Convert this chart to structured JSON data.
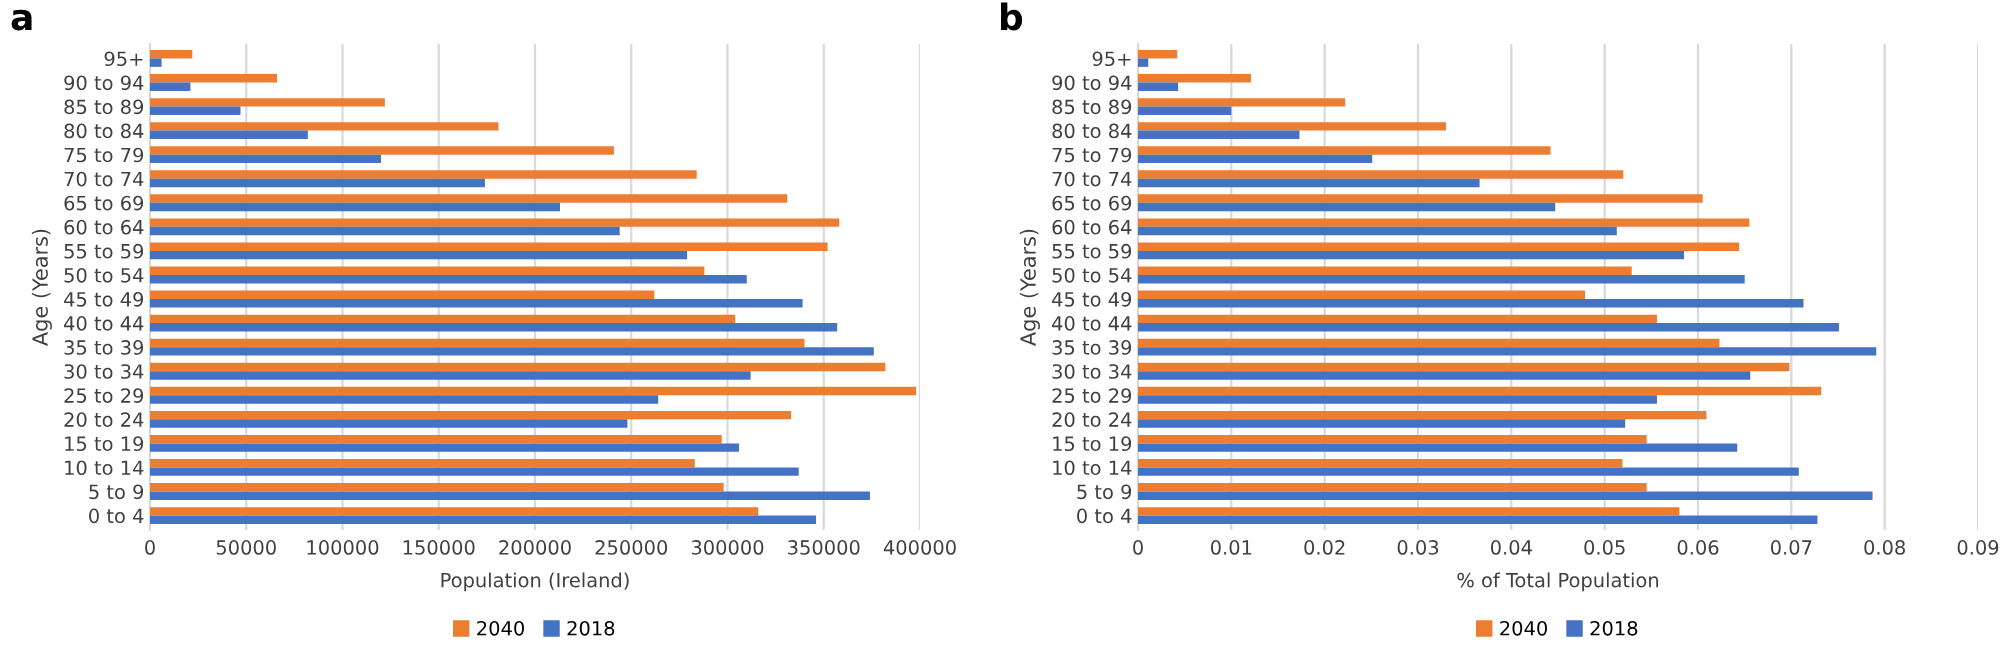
{
  "chart_data": [
    {
      "type": "bar",
      "orientation": "horizontal",
      "title": "a",
      "xlabel": "Population (Ireland)",
      "ylabel": "Age (Years)",
      "categories": [
        "95+",
        "90 to 94",
        "85 to 89",
        "80 to 84",
        "75 to 79",
        "70 to 74",
        "65 to 69",
        "60 to 64",
        "55 to 59",
        "50 to 54",
        "45 to 49",
        "40 to 44",
        "35 to 39",
        "30 to 34",
        "25 to 29",
        "20 to 24",
        "15 to 19",
        "10 to 14",
        "5 to 9",
        "0 to 4"
      ],
      "series": [
        {
          "name": "2040",
          "color": "#ed7d31",
          "values": [
            22000,
            66000,
            122000,
            181000,
            241000,
            284000,
            331000,
            358000,
            352000,
            288000,
            262000,
            304000,
            340000,
            382000,
            398000,
            333000,
            297000,
            283000,
            298000,
            316000
          ]
        },
        {
          "name": "2018",
          "color": "#4472c4",
          "values": [
            6000,
            21000,
            47000,
            82000,
            120000,
            174000,
            213000,
            244000,
            279000,
            310000,
            339000,
            357000,
            376000,
            312000,
            264000,
            248000,
            306000,
            337000,
            374000,
            346000
          ]
        }
      ],
      "xlim": [
        0,
        400000
      ],
      "xticks": [
        0,
        50000,
        100000,
        150000,
        200000,
        250000,
        300000,
        350000,
        400000
      ],
      "grid": "x",
      "legend": "bottom"
    },
    {
      "type": "bar",
      "orientation": "horizontal",
      "title": "b",
      "xlabel": "% of Total Population",
      "ylabel": "Age (Years)",
      "categories": [
        "95+",
        "90 to 94",
        "85 to 89",
        "80 to 84",
        "75 to 79",
        "70 to 74",
        "65 to 69",
        "60 to 64",
        "55 to 59",
        "50 to 54",
        "45 to 49",
        "40 to 44",
        "35 to 39",
        "30 to 34",
        "25 to 29",
        "20 to 24",
        "15 to 19",
        "10 to 14",
        "5 to 9",
        "0 to 4"
      ],
      "series": [
        {
          "name": "2040",
          "color": "#ed7d31",
          "values": [
            0.0042,
            0.0121,
            0.0222,
            0.033,
            0.0442,
            0.052,
            0.0605,
            0.0655,
            0.0644,
            0.0529,
            0.0479,
            0.0556,
            0.0623,
            0.0698,
            0.0732,
            0.0609,
            0.0545,
            0.0519,
            0.0545,
            0.058
          ]
        },
        {
          "name": "2018",
          "color": "#4472c4",
          "values": [
            0.0011,
            0.0043,
            0.01,
            0.0173,
            0.0251,
            0.0366,
            0.0447,
            0.0513,
            0.0585,
            0.065,
            0.0713,
            0.0751,
            0.0791,
            0.0656,
            0.0556,
            0.0522,
            0.0642,
            0.0708,
            0.0787,
            0.0728
          ]
        }
      ],
      "xlim": [
        0,
        0.09
      ],
      "xticks": [
        0,
        0.01,
        0.02,
        0.03,
        0.04,
        0.05,
        0.06,
        0.07,
        0.08,
        0.09
      ],
      "grid": "x",
      "legend": "bottom"
    }
  ]
}
